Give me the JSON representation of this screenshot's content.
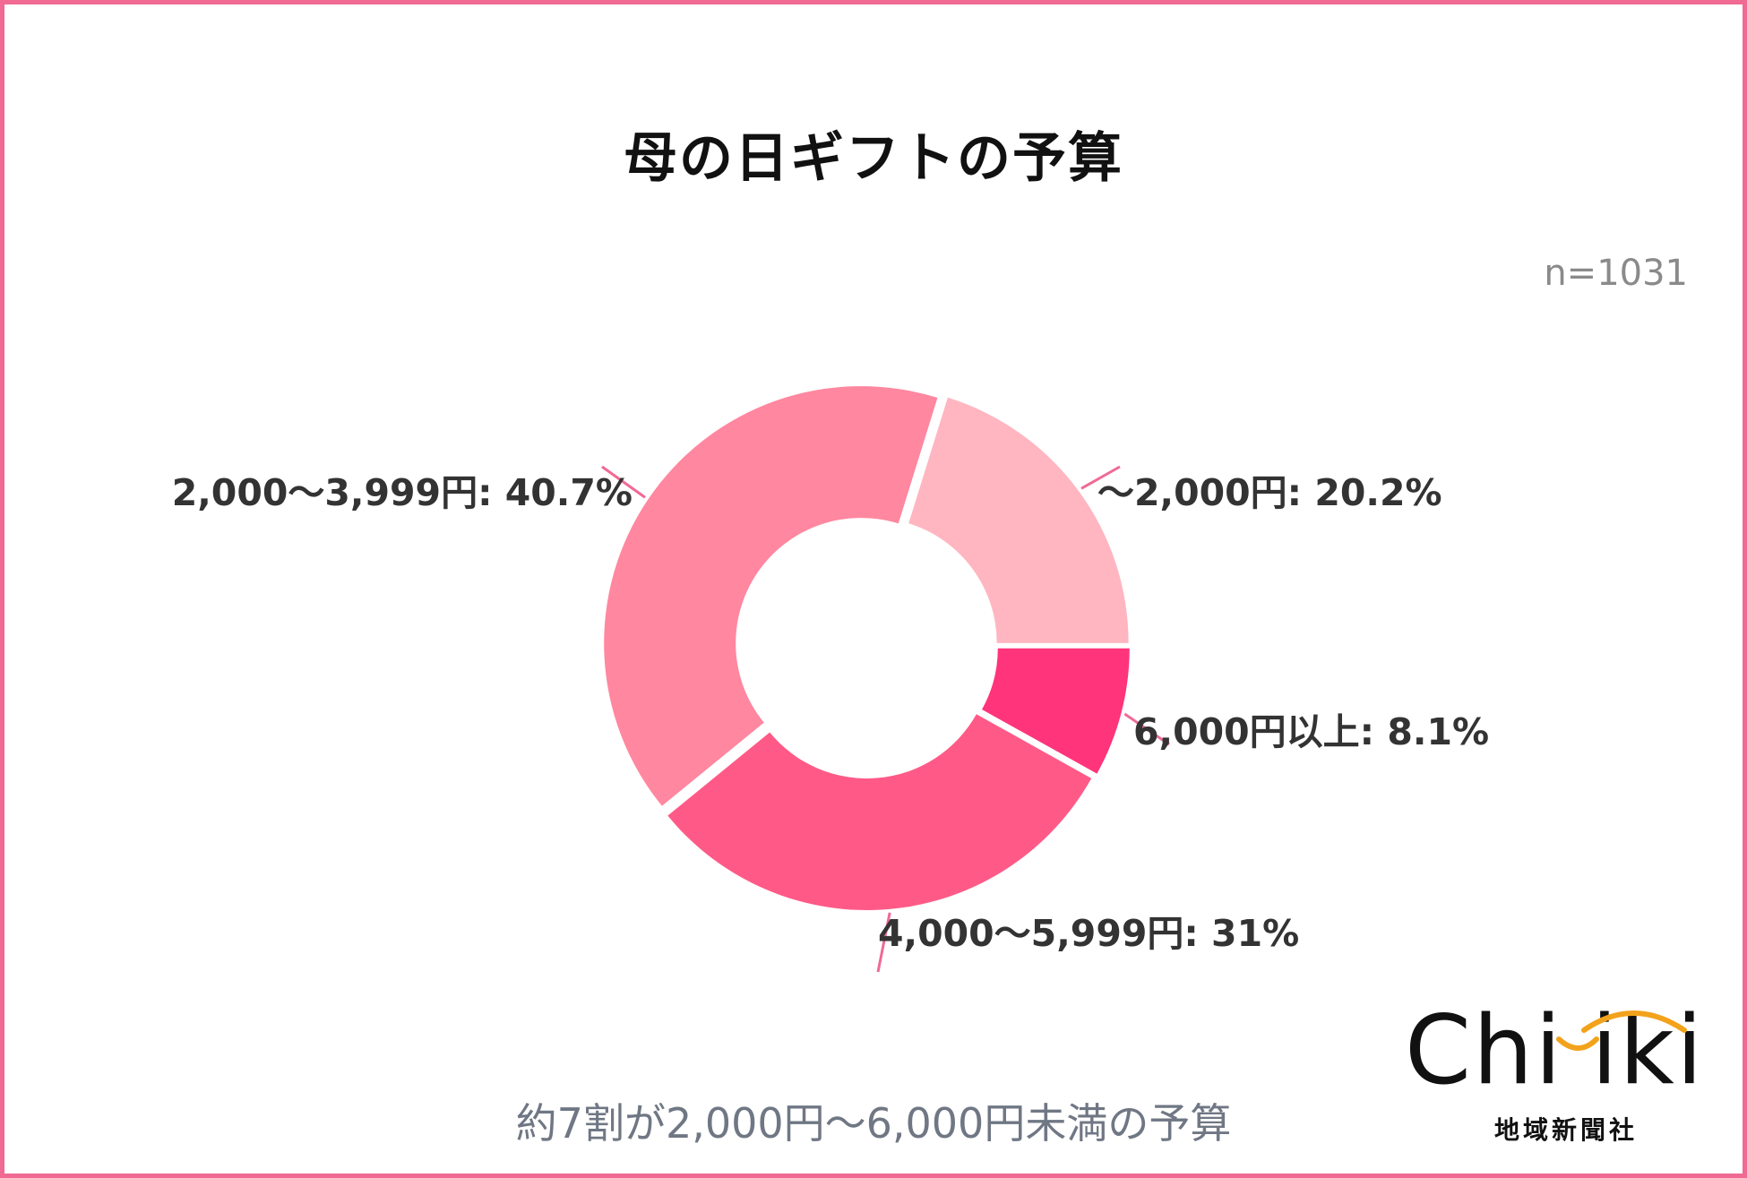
{
  "chart_data": {
    "type": "pie",
    "title": "母の日ギフトの予算",
    "sample_size": "n=1031",
    "donut": true,
    "slices": [
      {
        "label": "〜2,000円",
        "value": 20.2,
        "display": "〜2,000円: 20.2%",
        "color": "#ffb6c1"
      },
      {
        "label": "6,000円以上",
        "value": 8.1,
        "display": "6,000円以上: 8.1%",
        "color": "#ff347a"
      },
      {
        "label": "4,000〜5,999円",
        "value": 31,
        "display": "4,000〜5,999円: 31%",
        "color": "#ff5a87"
      },
      {
        "label": "2,000〜3,999円",
        "value": 40.7,
        "display": "2,000〜3,999円: 40.7%",
        "color": "#ff879f"
      }
    ],
    "caption": "約7割が2,000円〜6,000円未満の予算"
  },
  "logo": {
    "wordmark": "Chiiki",
    "subtitle": "地域新聞社",
    "accent_color": "#f3a21c"
  },
  "colors": {
    "frame": "#f06a94",
    "leader": "#f06a94"
  }
}
